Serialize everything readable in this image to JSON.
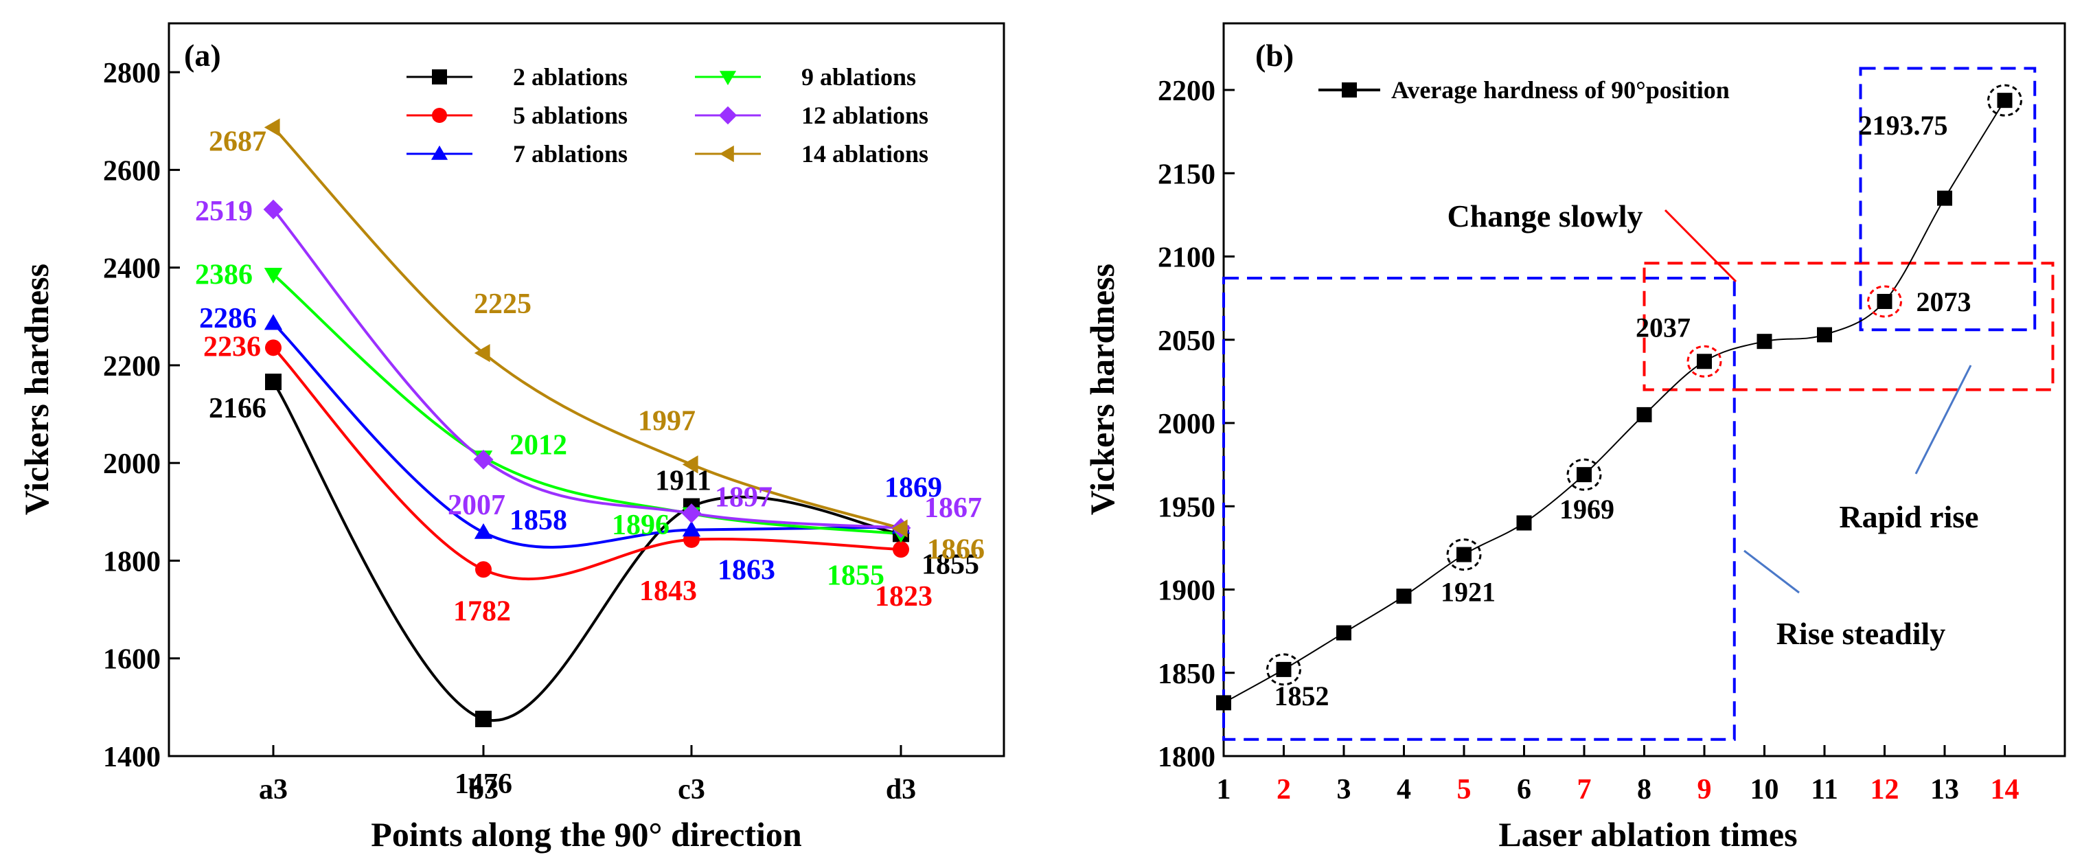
{
  "chart_data": [
    {
      "type": "line",
      "panel": "(a)",
      "xlabel": "Points along the 90° direction",
      "ylabel": "Vickers hardness",
      "categories": [
        "a3",
        "b3",
        "c3",
        "d3"
      ],
      "ylim": [
        1400,
        2900
      ],
      "yticks": [
        1400,
        1600,
        1800,
        2000,
        2200,
        2400,
        2600,
        2800
      ],
      "legend_position": "top-right",
      "series": [
        {
          "name": "2 ablations",
          "color": "#000000",
          "marker": "square",
          "values": [
            2166,
            1476,
            1911,
            1855
          ],
          "labels": [
            "2166",
            "1476",
            "1911",
            "1855"
          ]
        },
        {
          "name": "5 ablations",
          "color": "#ff0000",
          "marker": "circle",
          "values": [
            2236,
            1782,
            1843,
            1823
          ],
          "labels": [
            "2236",
            "1782",
            "1843",
            "1823"
          ]
        },
        {
          "name": "7 ablations",
          "color": "#0000ff",
          "marker": "triangle-up",
          "values": [
            2286,
            1858,
            1863,
            1869
          ],
          "labels": [
            "2286",
            "1858",
            "1863",
            "1869"
          ]
        },
        {
          "name": "9 ablations",
          "color": "#00ff00",
          "marker": "triangle-down",
          "values": [
            2386,
            2012,
            1896,
            1855
          ],
          "labels": [
            "2386",
            "2012",
            "1896",
            "1855"
          ]
        },
        {
          "name": "12 ablations",
          "color": "#9b30ff",
          "marker": "diamond",
          "values": [
            2519,
            2007,
            1897,
            1867
          ],
          "labels": [
            "2519",
            "2007",
            "1897",
            "1867"
          ]
        },
        {
          "name": "14 ablations",
          "color": "#b8860b",
          "marker": "triangle-left",
          "values": [
            2687,
            2225,
            1997,
            1866
          ],
          "labels": [
            "2687",
            "2225",
            "1997",
            "1866"
          ]
        }
      ]
    },
    {
      "type": "line",
      "panel": "(b)",
      "xlabel": "Laser ablation times",
      "ylabel": "Vickers hardness",
      "xlim": [
        1,
        15
      ],
      "ylim": [
        1800,
        2240
      ],
      "xticks": [
        1,
        2,
        3,
        4,
        5,
        6,
        7,
        8,
        9,
        10,
        11,
        12,
        13,
        14
      ],
      "highlighted_xticks": [
        2,
        5,
        7,
        9,
        12,
        14
      ],
      "highlight_color": "#ff0000",
      "yticks": [
        1800,
        1850,
        1900,
        1950,
        2000,
        2050,
        2100,
        2150,
        2200
      ],
      "legend_position": "top-left",
      "series": [
        {
          "name": "Average hardness of 90°position",
          "color": "#000000",
          "marker": "square",
          "x": [
            1,
            2,
            3,
            4,
            5,
            6,
            7,
            8,
            9,
            10,
            11,
            12,
            13,
            14
          ],
          "values": [
            1832,
            1852,
            1874,
            1896,
            1921,
            1940,
            1969,
            2005,
            2037,
            2049,
            2053,
            2073,
            2135,
            2193.75
          ]
        }
      ],
      "point_labels": [
        {
          "x": 2,
          "y": 1852,
          "text": "1852",
          "circle": "black"
        },
        {
          "x": 5,
          "y": 1921,
          "text": "1921",
          "circle": "black"
        },
        {
          "x": 7,
          "y": 1969,
          "text": "1969",
          "circle": "black"
        },
        {
          "x": 9,
          "y": 2037,
          "text": "2037",
          "circle": "red"
        },
        {
          "x": 12,
          "y": 2073,
          "text": "2073",
          "circle": "red"
        },
        {
          "x": 14,
          "y": 2193.75,
          "text": "2193.75",
          "circle": "black"
        }
      ],
      "regions": [
        {
          "label": "Rise steadily",
          "color": "#0000ff",
          "x_range": [
            1,
            9.5
          ],
          "y_range": [
            1810,
            2087
          ]
        },
        {
          "label": "Change slowly",
          "color": "#ff0000",
          "x_range": [
            8,
            14.8
          ],
          "y_range": [
            2020,
            2096
          ]
        },
        {
          "label": "Rapid rise",
          "color": "#0000ff",
          "x_range": [
            11.6,
            14.5
          ],
          "y_range": [
            2056,
            2213
          ]
        }
      ]
    }
  ]
}
